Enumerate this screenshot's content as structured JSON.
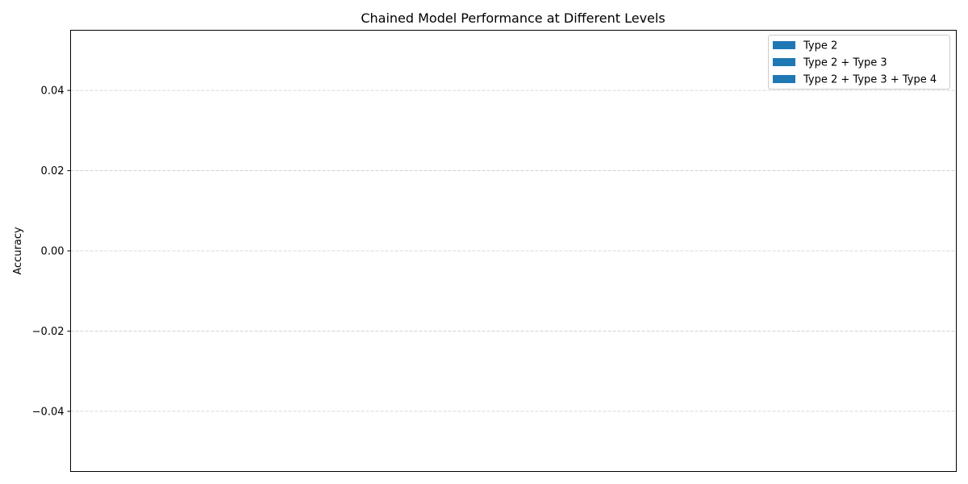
{
  "chart_data": {
    "type": "bar",
    "title": "Chained Model Performance at Different Levels",
    "xlabel": "",
    "ylabel": "Accuracy",
    "categories": [],
    "series": [
      {
        "name": "Type 2",
        "values": []
      },
      {
        "name": "Type 2 + Type 3",
        "values": []
      },
      {
        "name": "Type 2 + Type 3 + Type 4",
        "values": []
      }
    ],
    "ylim": [
      -0.055,
      0.055
    ],
    "yticks": [
      -0.04,
      -0.02,
      0.0,
      0.02,
      0.04
    ],
    "ytick_labels": [
      "−0.04",
      "−0.02",
      "0.00",
      "0.02",
      "0.04"
    ],
    "grid": true,
    "grid_axis": "y",
    "legend_position": "top-right",
    "colors": {
      "series": [
        "#1f77b4",
        "#1f77b4",
        "#1f77b4"
      ],
      "grid": "#cccccc",
      "axis": "#000000"
    }
  }
}
